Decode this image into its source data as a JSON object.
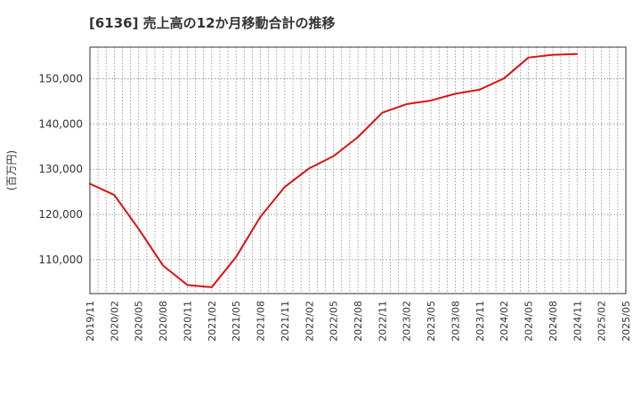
{
  "chart_data": {
    "type": "line",
    "title": "[6136]  売上高の12か月移動合計の推移",
    "ylabel": "(百万円)",
    "xlabel": "",
    "ylim": [
      102500,
      157000
    ],
    "yticks": [
      110000,
      120000,
      130000,
      140000,
      150000
    ],
    "ytick_labels": [
      "110,000",
      "120,000",
      "130,000",
      "140,000",
      "150,000"
    ],
    "x_start": "2019/11",
    "x_end": "2025/05",
    "x_tick_labels": [
      "2019/11",
      "2020/02",
      "2020/05",
      "2020/08",
      "2020/11",
      "2021/02",
      "2021/05",
      "2021/08",
      "2021/11",
      "2022/02",
      "2022/05",
      "2022/08",
      "2022/11",
      "2023/02",
      "2023/05",
      "2023/08",
      "2023/11",
      "2024/02",
      "2024/05",
      "2024/08",
      "2024/11",
      "2025/02",
      "2025/05"
    ],
    "grid": true,
    "series": [
      {
        "name": "売上高の12か月移動合計",
        "color": "#dd1111",
        "x": [
          "2019/11",
          "2020/02",
          "2020/05",
          "2020/08",
          "2020/11",
          "2021/02",
          "2021/05",
          "2021/08",
          "2021/11",
          "2022/02",
          "2022/05",
          "2022/08",
          "2022/11",
          "2023/02",
          "2023/05",
          "2023/08",
          "2023/11",
          "2024/02",
          "2024/05",
          "2024/08",
          "2024/11"
        ],
        "values": [
          126800,
          124300,
          116800,
          108700,
          104400,
          103900,
          110600,
          119500,
          126100,
          130200,
          132900,
          137100,
          142500,
          144400,
          145200,
          146700,
          147600,
          150100,
          154700,
          155300,
          155500
        ]
      }
    ]
  }
}
